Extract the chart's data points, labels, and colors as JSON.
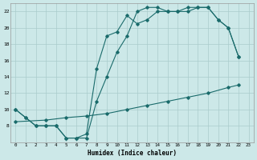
{
  "xlabel": "Humidex (Indice chaleur)",
  "xlim": [
    -0.5,
    23.5
  ],
  "ylim": [
    6,
    23
  ],
  "yticks": [
    8,
    10,
    12,
    14,
    16,
    18,
    20,
    22
  ],
  "xticks": [
    0,
    1,
    2,
    3,
    4,
    5,
    6,
    7,
    8,
    9,
    10,
    11,
    12,
    13,
    14,
    15,
    16,
    17,
    18,
    19,
    20,
    21,
    22,
    23
  ],
  "bg_color": "#cce8e8",
  "grid_color": "#aacccc",
  "line_color": "#1a6b6b",
  "line1_x": [
    0,
    1,
    2,
    3,
    4,
    5,
    6,
    7,
    8,
    9,
    10,
    11,
    12,
    13,
    14,
    15,
    16,
    17,
    18,
    19,
    20,
    21,
    22
  ],
  "line1_y": [
    10.0,
    9.0,
    8.0,
    8.0,
    8.0,
    6.5,
    6.5,
    7.0,
    15.0,
    19.0,
    19.5,
    21.5,
    20.5,
    21.0,
    22.0,
    22.0,
    22.0,
    22.0,
    22.5,
    22.5,
    21.0,
    20.0,
    16.5
  ],
  "line2_x": [
    0,
    1,
    2,
    3,
    4,
    5,
    6,
    7,
    8,
    9,
    10,
    11,
    12,
    13,
    14,
    15,
    16,
    17,
    18,
    19,
    20,
    21,
    22
  ],
  "line2_y": [
    10.0,
    9.0,
    8.0,
    8.0,
    8.0,
    6.5,
    6.5,
    6.5,
    11.0,
    14.0,
    17.0,
    19.0,
    22.0,
    22.5,
    22.5,
    22.0,
    22.0,
    22.5,
    22.5,
    22.5,
    21.0,
    20.0,
    16.5
  ],
  "line3_x": [
    0,
    3,
    5,
    7,
    9,
    11,
    13,
    15,
    17,
    19,
    21,
    22
  ],
  "line3_y": [
    8.5,
    8.7,
    9.0,
    9.2,
    9.5,
    10.0,
    10.5,
    11.0,
    11.5,
    12.0,
    12.7,
    13.0
  ]
}
